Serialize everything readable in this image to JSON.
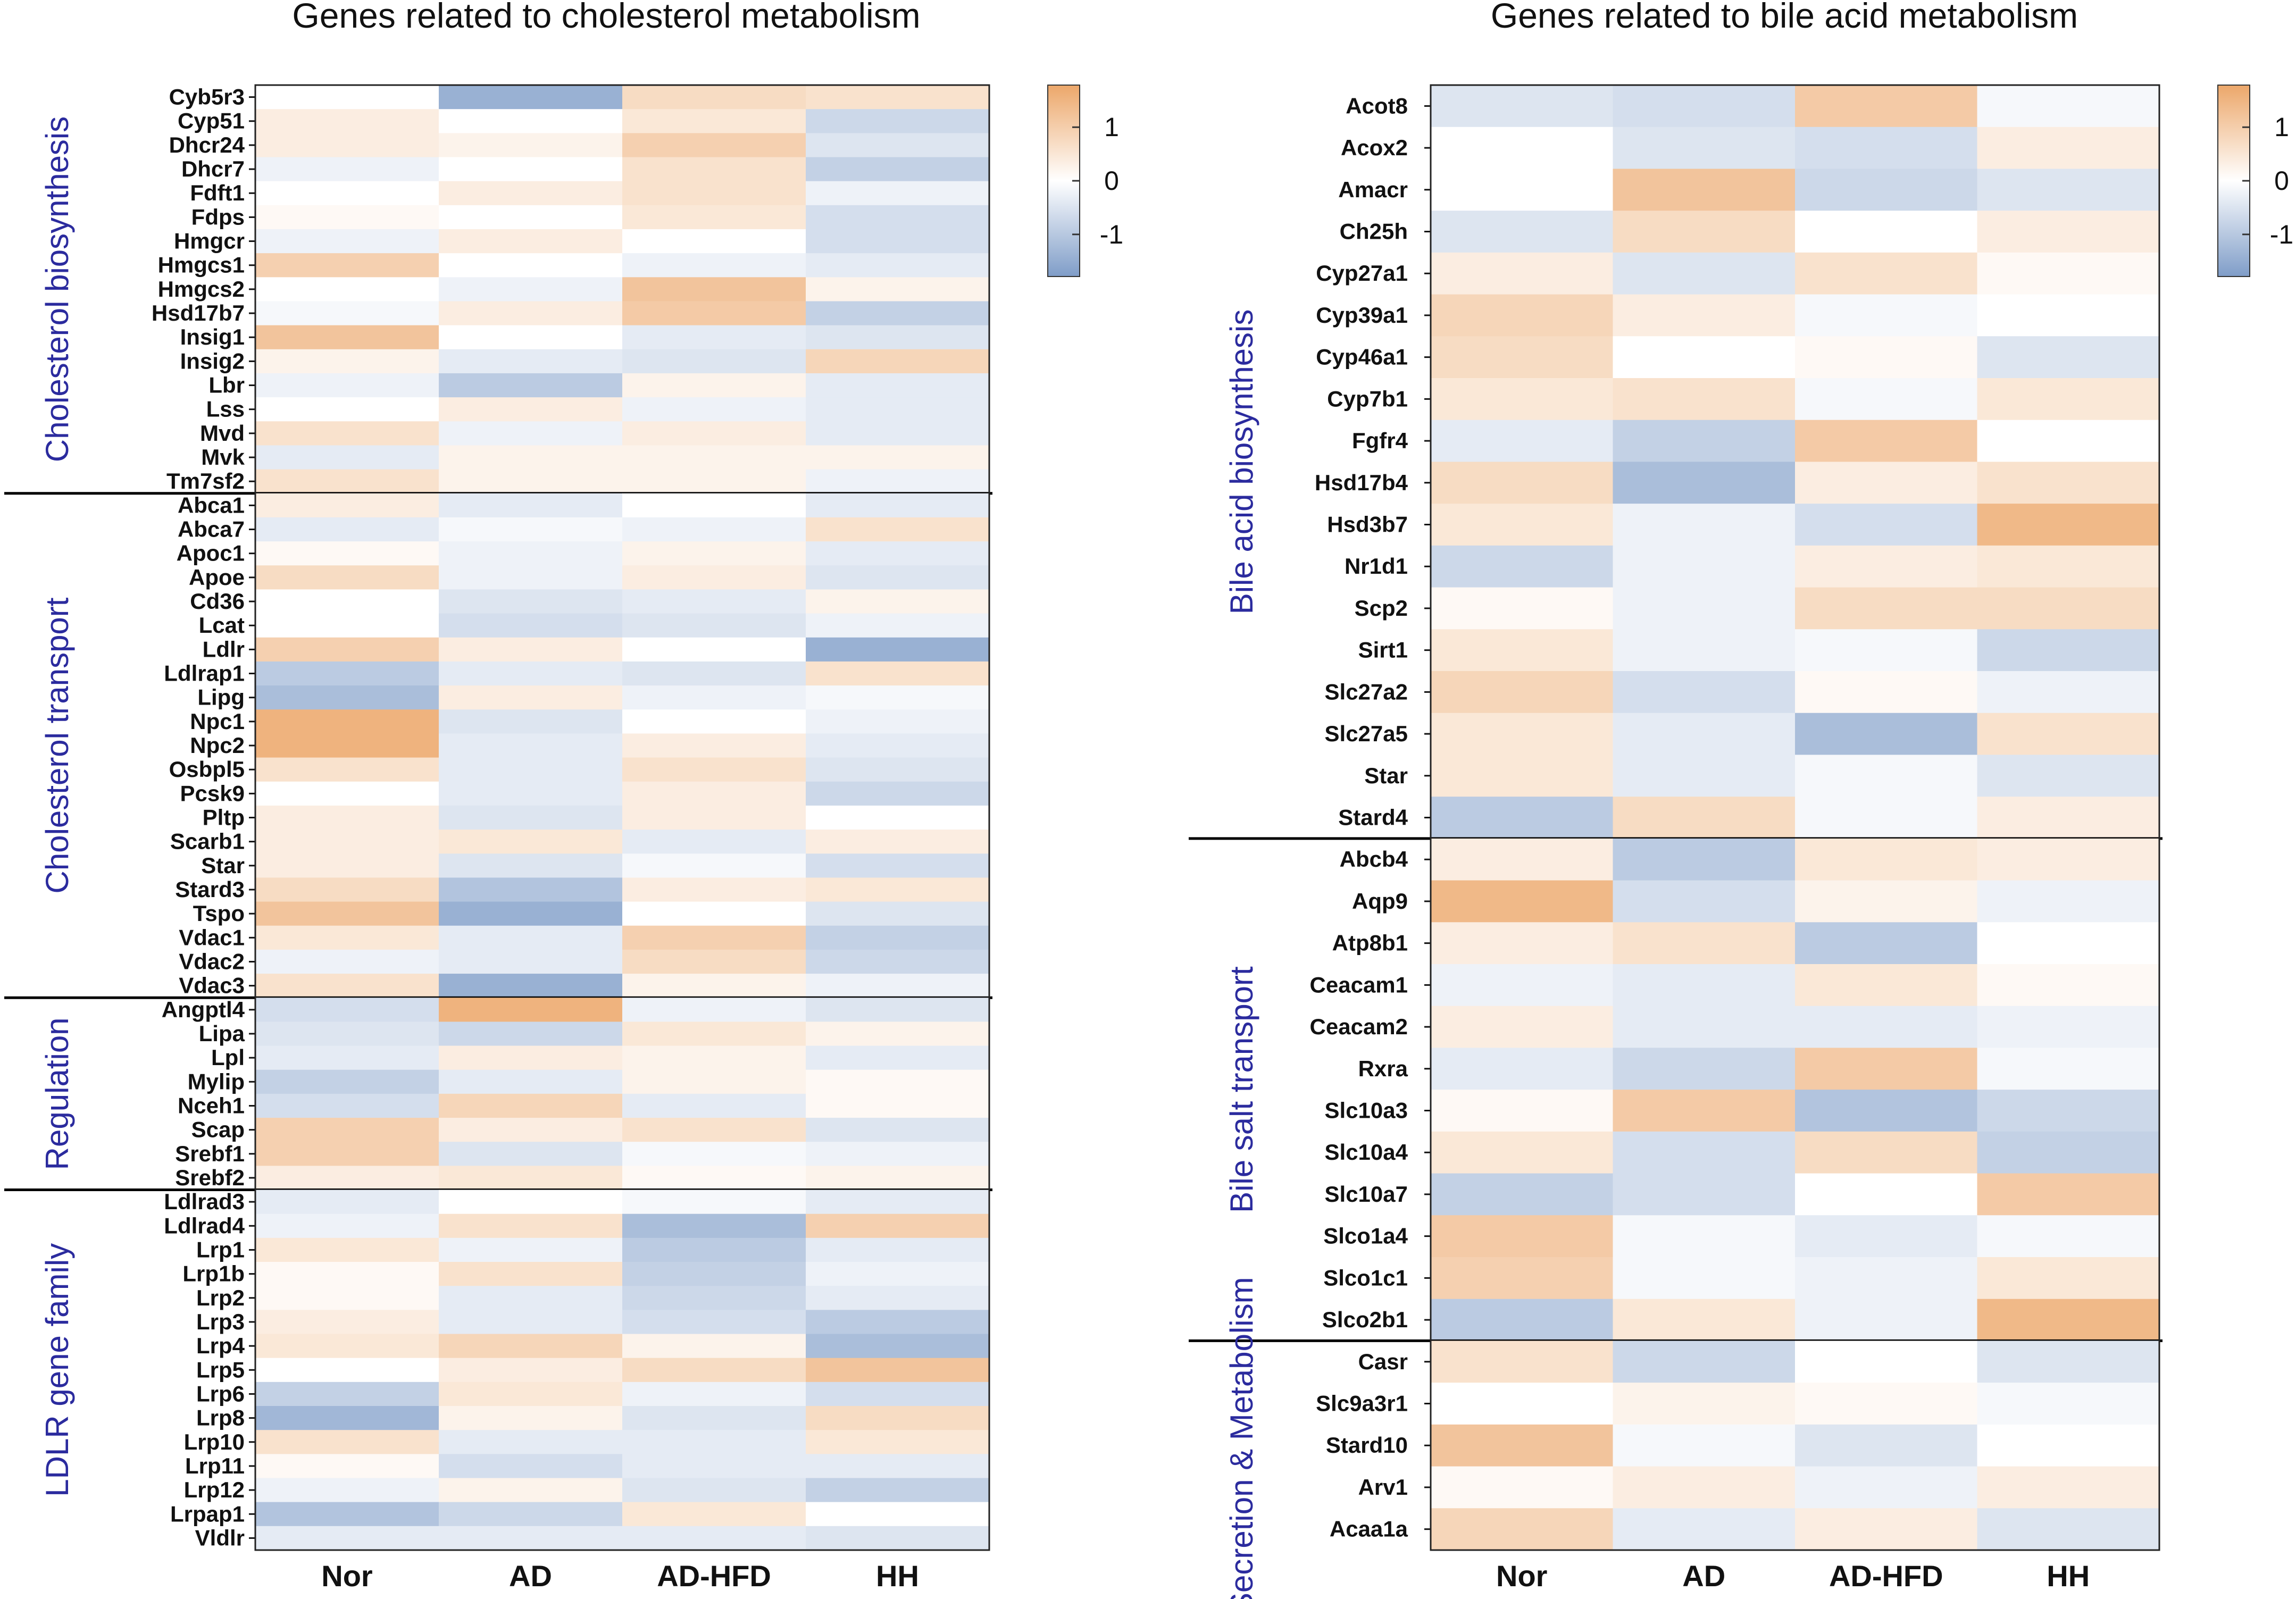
{
  "colors": {
    "low": "#7f9dc8",
    "mid": "#ffffff",
    "high": "#eca76a",
    "group_label": "#2b2b9e"
  },
  "chart_data": [
    {
      "type": "heatmap",
      "title": "Genes related to cholesterol metabolism",
      "columns": [
        "Nor",
        "AD",
        "AD-HFD",
        "HH"
      ],
      "legend_ticks": [
        "1",
        "0",
        "-1"
      ],
      "color_range": [
        -1.5,
        1.5
      ],
      "groups": [
        {
          "label": "Cholesterol biosynthesis",
          "rows": [
            {
              "gene": "Cyb5r3",
              "values": [
                0.0,
                -1.2,
                0.6,
                0.5
              ]
            },
            {
              "gene": "Cyp51",
              "values": [
                0.3,
                0.0,
                0.4,
                -0.6
              ]
            },
            {
              "gene": "Dhcr24",
              "values": [
                0.3,
                0.2,
                0.8,
                -0.4
              ]
            },
            {
              "gene": "Dhcr7",
              "values": [
                -0.2,
                0.0,
                0.5,
                -0.7
              ]
            },
            {
              "gene": "Fdft1",
              "values": [
                0.0,
                0.3,
                0.5,
                -0.2
              ]
            },
            {
              "gene": "Fdps",
              "values": [
                0.1,
                0.0,
                0.4,
                -0.5
              ]
            },
            {
              "gene": "Hmgcr",
              "values": [
                -0.2,
                0.3,
                0.0,
                -0.5
              ]
            },
            {
              "gene": "Hmgcs1",
              "values": [
                0.8,
                0.0,
                -0.2,
                -0.3
              ]
            },
            {
              "gene": "Hmgcs2",
              "values": [
                0.0,
                -0.2,
                1.0,
                0.2
              ]
            },
            {
              "gene": "Hsd17b7",
              "values": [
                -0.1,
                0.3,
                0.9,
                -0.7
              ]
            },
            {
              "gene": "Insig1",
              "values": [
                1.0,
                0.0,
                -0.3,
                -0.4
              ]
            },
            {
              "gene": "Insig2",
              "values": [
                0.2,
                -0.3,
                -0.4,
                0.7
              ]
            },
            {
              "gene": "Lbr",
              "values": [
                -0.2,
                -0.8,
                0.2,
                -0.3
              ]
            },
            {
              "gene": "Lss",
              "values": [
                0.0,
                0.3,
                -0.2,
                -0.3
              ]
            },
            {
              "gene": "Mvd",
              "values": [
                0.5,
                -0.2,
                0.3,
                -0.3
              ]
            },
            {
              "gene": "Mvk",
              "values": [
                -0.3,
                0.2,
                0.2,
                0.2
              ]
            },
            {
              "gene": "Tm7sf2",
              "values": [
                0.5,
                0.2,
                0.2,
                -0.2
              ]
            }
          ]
        },
        {
          "label": "Cholesterol transport",
          "rows": [
            {
              "gene": "Abca1",
              "values": [
                0.3,
                -0.3,
                0.0,
                -0.3
              ]
            },
            {
              "gene": "Abca7",
              "values": [
                -0.3,
                -0.1,
                -0.2,
                0.5
              ]
            },
            {
              "gene": "Apoc1",
              "values": [
                0.1,
                -0.2,
                0.2,
                -0.3
              ]
            },
            {
              "gene": "Apoe",
              "values": [
                0.6,
                -0.2,
                0.3,
                -0.4
              ]
            },
            {
              "gene": "Cd36",
              "values": [
                0.0,
                -0.4,
                -0.3,
                0.2
              ]
            },
            {
              "gene": "Lcat",
              "values": [
                0.0,
                -0.5,
                -0.4,
                -0.2
              ]
            },
            {
              "gene": "Ldlr",
              "values": [
                0.8,
                0.3,
                0.0,
                -1.2
              ]
            },
            {
              "gene": "Ldlrap1",
              "values": [
                -0.8,
                -0.3,
                -0.4,
                0.5
              ]
            },
            {
              "gene": "Lipg",
              "values": [
                -1.0,
                0.3,
                -0.2,
                -0.1
              ]
            },
            {
              "gene": "Npc1",
              "values": [
                1.3,
                -0.4,
                0.0,
                -0.2
              ]
            },
            {
              "gene": "Npc2",
              "values": [
                1.3,
                -0.3,
                0.3,
                -0.3
              ]
            },
            {
              "gene": "Osbpl5",
              "values": [
                0.5,
                -0.3,
                0.5,
                -0.4
              ]
            },
            {
              "gene": "Pcsk9",
              "values": [
                0.0,
                -0.3,
                0.3,
                -0.6
              ]
            },
            {
              "gene": "Pltp",
              "values": [
                0.3,
                -0.4,
                0.3,
                0.0
              ]
            },
            {
              "gene": "Scarb1",
              "values": [
                0.3,
                0.4,
                -0.3,
                0.3
              ]
            },
            {
              "gene": "Star",
              "values": [
                0.3,
                -0.4,
                -0.1,
                -0.5
              ]
            },
            {
              "gene": "Stard3",
              "values": [
                0.6,
                -0.9,
                0.3,
                0.4
              ]
            },
            {
              "gene": "Tspo",
              "values": [
                1.0,
                -1.2,
                0.0,
                -0.4
              ]
            },
            {
              "gene": "Vdac1",
              "values": [
                0.4,
                -0.3,
                0.8,
                -0.7
              ]
            },
            {
              "gene": "Vdac2",
              "values": [
                -0.2,
                -0.3,
                0.6,
                -0.6
              ]
            },
            {
              "gene": "Vdac3",
              "values": [
                0.5,
                -1.2,
                0.2,
                -0.2
              ]
            }
          ]
        },
        {
          "label": "Regulation",
          "rows": [
            {
              "gene": "Angptl4",
              "values": [
                -0.5,
                1.3,
                -0.2,
                -0.4
              ]
            },
            {
              "gene": "Lipa",
              "values": [
                -0.4,
                -0.6,
                0.4,
                0.2
              ]
            },
            {
              "gene": "Lpl",
              "values": [
                -0.3,
                0.3,
                0.2,
                -0.3
              ]
            },
            {
              "gene": "Mylip",
              "values": [
                -0.7,
                -0.3,
                0.2,
                0.1
              ]
            },
            {
              "gene": "Nceh1",
              "values": [
                -0.5,
                0.7,
                -0.3,
                0.1
              ]
            },
            {
              "gene": "Scap",
              "values": [
                0.8,
                0.3,
                0.5,
                -0.4
              ]
            },
            {
              "gene": "Srebf1",
              "values": [
                0.8,
                -0.4,
                -0.1,
                -0.2
              ]
            },
            {
              "gene": "Srebf2",
              "values": [
                0.3,
                0.4,
                0.1,
                0.2
              ]
            }
          ]
        },
        {
          "label": "LDLR gene family",
          "rows": [
            {
              "gene": "Ldlrad3",
              "values": [
                -0.3,
                0.0,
                -0.1,
                -0.3
              ]
            },
            {
              "gene": "Ldlrad4",
              "values": [
                -0.2,
                0.5,
                -1.0,
                0.8
              ]
            },
            {
              "gene": "Lrp1",
              "values": [
                0.4,
                -0.2,
                -0.8,
                -0.3
              ]
            },
            {
              "gene": "Lrp1b",
              "values": [
                0.1,
                0.5,
                -0.7,
                -0.2
              ]
            },
            {
              "gene": "Lrp2",
              "values": [
                0.1,
                -0.3,
                -0.6,
                -0.3
              ]
            },
            {
              "gene": "Lrp3",
              "values": [
                0.3,
                -0.3,
                -0.5,
                -0.8
              ]
            },
            {
              "gene": "Lrp4",
              "values": [
                0.4,
                0.7,
                0.2,
                -1.0
              ]
            },
            {
              "gene": "Lrp5",
              "values": [
                0.0,
                0.3,
                0.6,
                1.0
              ]
            },
            {
              "gene": "Lrp6",
              "values": [
                -0.7,
                0.4,
                -0.2,
                -0.5
              ]
            },
            {
              "gene": "Lrp8",
              "values": [
                -1.1,
                0.2,
                -0.4,
                0.6
              ]
            },
            {
              "gene": "Lrp10",
              "values": [
                0.5,
                -0.3,
                -0.3,
                0.4
              ]
            },
            {
              "gene": "Lrp11",
              "values": [
                0.1,
                -0.5,
                -0.3,
                -0.3
              ]
            },
            {
              "gene": "Lrp12",
              "values": [
                -0.2,
                0.2,
                -0.4,
                -0.7
              ]
            },
            {
              "gene": "Lrpap1",
              "values": [
                -0.9,
                -0.6,
                0.4,
                0.0
              ]
            },
            {
              "gene": "Vldlr",
              "values": [
                -0.3,
                -0.3,
                -0.3,
                -0.4
              ]
            }
          ]
        }
      ]
    },
    {
      "type": "heatmap",
      "title": "Genes related to bile acid metabolism",
      "columns": [
        "Nor",
        "AD",
        "AD-HFD",
        "HH"
      ],
      "legend_ticks": [
        "1",
        "0",
        "-1"
      ],
      "color_range": [
        -1.5,
        1.5
      ],
      "groups": [
        {
          "label": "Bile acid biosynthesis",
          "rows": [
            {
              "gene": "Acot8",
              "values": [
                -0.4,
                -0.5,
                0.9,
                -0.1
              ]
            },
            {
              "gene": "Acox2",
              "values": [
                0.0,
                -0.4,
                -0.5,
                0.3
              ]
            },
            {
              "gene": "Amacr",
              "values": [
                0.0,
                1.0,
                -0.6,
                -0.4
              ]
            },
            {
              "gene": "Ch25h",
              "values": [
                -0.4,
                0.6,
                0.0,
                0.3
              ]
            },
            {
              "gene": "Cyp27a1",
              "values": [
                0.3,
                -0.4,
                0.5,
                0.1
              ]
            },
            {
              "gene": "Cyp39a1",
              "values": [
                0.7,
                0.3,
                -0.1,
                0.0
              ]
            },
            {
              "gene": "Cyp46a1",
              "values": [
                0.6,
                0.0,
                0.1,
                -0.4
              ]
            },
            {
              "gene": "Cyp7b1",
              "values": [
                0.4,
                0.5,
                -0.1,
                0.4
              ]
            },
            {
              "gene": "Fgfr4",
              "values": [
                -0.3,
                -0.7,
                0.9,
                0.0
              ]
            },
            {
              "gene": "Hsd17b4",
              "values": [
                0.6,
                -1.0,
                0.3,
                0.5
              ]
            },
            {
              "gene": "Hsd3b7",
              "values": [
                0.4,
                -0.2,
                -0.5,
                1.2
              ]
            },
            {
              "gene": "Nr1d1",
              "values": [
                -0.6,
                -0.2,
                0.3,
                0.4
              ]
            },
            {
              "gene": "Scp2",
              "values": [
                0.1,
                -0.2,
                0.6,
                0.6
              ]
            },
            {
              "gene": "Sirt1",
              "values": [
                0.4,
                -0.2,
                -0.1,
                -0.6
              ]
            },
            {
              "gene": "Slc27a2",
              "values": [
                0.7,
                -0.5,
                0.1,
                -0.2
              ]
            },
            {
              "gene": "Slc27a5",
              "values": [
                0.4,
                -0.3,
                -1.0,
                0.5
              ]
            },
            {
              "gene": "Star",
              "values": [
                0.4,
                -0.3,
                -0.1,
                -0.4
              ]
            },
            {
              "gene": "Stard4",
              "values": [
                -0.8,
                0.6,
                -0.1,
                0.3
              ]
            }
          ]
        },
        {
          "label": "Bile salt transport",
          "rows": [
            {
              "gene": "Abcb4",
              "values": [
                0.3,
                -0.8,
                0.4,
                0.3
              ]
            },
            {
              "gene": "Aqp9",
              "values": [
                1.2,
                -0.5,
                0.2,
                -0.2
              ]
            },
            {
              "gene": "Atp8b1",
              "values": [
                0.3,
                0.5,
                -0.8,
                0.0
              ]
            },
            {
              "gene": "Ceacam1",
              "values": [
                -0.2,
                -0.3,
                0.4,
                0.1
              ]
            },
            {
              "gene": "Ceacam2",
              "values": [
                0.3,
                -0.3,
                -0.3,
                -0.2
              ]
            },
            {
              "gene": "Rxra",
              "values": [
                -0.3,
                -0.6,
                0.9,
                -0.1
              ]
            },
            {
              "gene": "Slc10a3",
              "values": [
                0.1,
                0.9,
                -0.9,
                -0.6
              ]
            },
            {
              "gene": "Slc10a4",
              "values": [
                0.4,
                -0.5,
                0.6,
                -0.7
              ]
            },
            {
              "gene": "Slc10a7",
              "values": [
                -0.7,
                -0.5,
                0.0,
                0.9
              ]
            },
            {
              "gene": "Slco1a4",
              "values": [
                0.9,
                -0.1,
                -0.3,
                -0.1
              ]
            },
            {
              "gene": "Slco1c1",
              "values": [
                0.8,
                -0.1,
                -0.2,
                0.4
              ]
            },
            {
              "gene": "Slco2b1",
              "values": [
                -0.8,
                0.4,
                -0.2,
                1.2
              ]
            }
          ]
        },
        {
          "label": "Secretion & Metabolism",
          "rows": [
            {
              "gene": "Casr",
              "values": [
                0.5,
                -0.6,
                0.0,
                -0.4
              ]
            },
            {
              "gene": "Slc9a3r1",
              "values": [
                0.0,
                0.2,
                0.1,
                -0.1
              ]
            },
            {
              "gene": "Stard10",
              "values": [
                1.0,
                -0.1,
                -0.4,
                0.0
              ]
            },
            {
              "gene": "Arv1",
              "values": [
                0.1,
                0.3,
                -0.2,
                0.3
              ]
            },
            {
              "gene": "Acaa1a",
              "values": [
                0.7,
                -0.3,
                0.3,
                -0.4
              ]
            }
          ]
        }
      ]
    }
  ]
}
